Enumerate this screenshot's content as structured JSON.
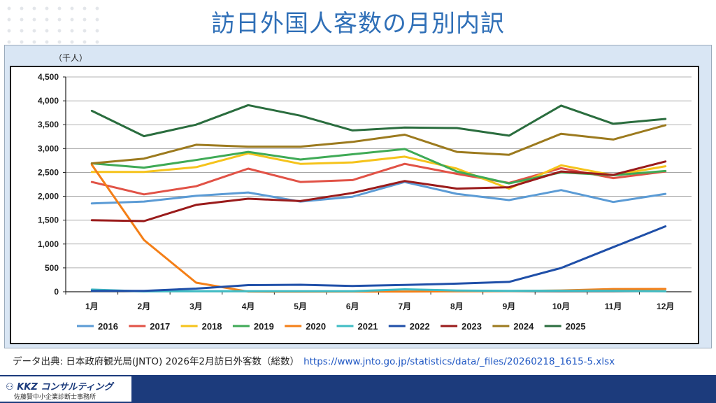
{
  "page": {
    "title": "訪日外国人客数の月別内訳",
    "source_text": "データ出典: 日本政府観光局(JNTO) 2026年2月訪日外客数（総数）",
    "source_link": "https://www.jnto.go.jp/statistics/data/_files/20260218_1615-5.xlsx",
    "brand_name": "KKZ コンサルティング",
    "brand_sub": "佐藤賢中小企業診断士事務所"
  },
  "chart_data": {
    "type": "line",
    "unit_label": "（千人）",
    "categories": [
      "1月",
      "2月",
      "3月",
      "4月",
      "5月",
      "6月",
      "7月",
      "8月",
      "9月",
      "10月",
      "11月",
      "12月"
    ],
    "ylim": [
      0,
      4500
    ],
    "yticks": [
      0,
      500,
      1000,
      1500,
      2000,
      2500,
      3000,
      3500,
      4000,
      4500
    ],
    "ytick_labels": [
      "0",
      "500",
      "1,000",
      "1,500",
      "2,000",
      "2,500",
      "3,000",
      "3,500",
      "4,000",
      "4,500"
    ],
    "grid": true,
    "legend_position": "bottom",
    "series": [
      {
        "name": "2016",
        "color": "#5b9bd5",
        "values": [
          1850,
          1890,
          2010,
          2080,
          1890,
          1990,
          2300,
          2050,
          1920,
          2130,
          1880,
          2050
        ]
      },
      {
        "name": "2017",
        "color": "#e15246",
        "values": [
          2300,
          2040,
          2210,
          2580,
          2300,
          2340,
          2680,
          2470,
          2280,
          2590,
          2380,
          2520
        ]
      },
      {
        "name": "2018",
        "color": "#f5c31b",
        "values": [
          2510,
          2510,
          2610,
          2900,
          2680,
          2710,
          2830,
          2580,
          2160,
          2650,
          2440,
          2630
        ]
      },
      {
        "name": "2019",
        "color": "#3faa56",
        "values": [
          2690,
          2600,
          2760,
          2930,
          2770,
          2880,
          2990,
          2520,
          2270,
          2500,
          2440,
          2530
        ]
      },
      {
        "name": "2020",
        "color": "#f47f17",
        "values": [
          2660,
          1085,
          190,
          3,
          2,
          3,
          4,
          9,
          14,
          28,
          57,
          58
        ]
      },
      {
        "name": "2021",
        "color": "#3fbcc4",
        "values": [
          46,
          7,
          12,
          11,
          10,
          10,
          52,
          26,
          18,
          22,
          21,
          12
        ]
      },
      {
        "name": "2022",
        "color": "#1f4fa8",
        "values": [
          17,
          17,
          66,
          139,
          147,
          121,
          144,
          170,
          207,
          499,
          935,
          1370
        ]
      },
      {
        "name": "2023",
        "color": "#9a1b1b",
        "values": [
          1500,
          1480,
          1820,
          1950,
          1900,
          2070,
          2320,
          2160,
          2190,
          2520,
          2450,
          2730
        ]
      },
      {
        "name": "2024",
        "color": "#9c7a1e",
        "values": [
          2690,
          2790,
          3080,
          3040,
          3040,
          3140,
          3290,
          2930,
          2870,
          3310,
          3190,
          3490
        ]
      },
      {
        "name": "2025",
        "color": "#2a6d3e",
        "values": [
          3790,
          3260,
          3500,
          3910,
          3690,
          3380,
          3440,
          3430,
          3270,
          3900,
          3520,
          3620
        ]
      }
    ]
  }
}
